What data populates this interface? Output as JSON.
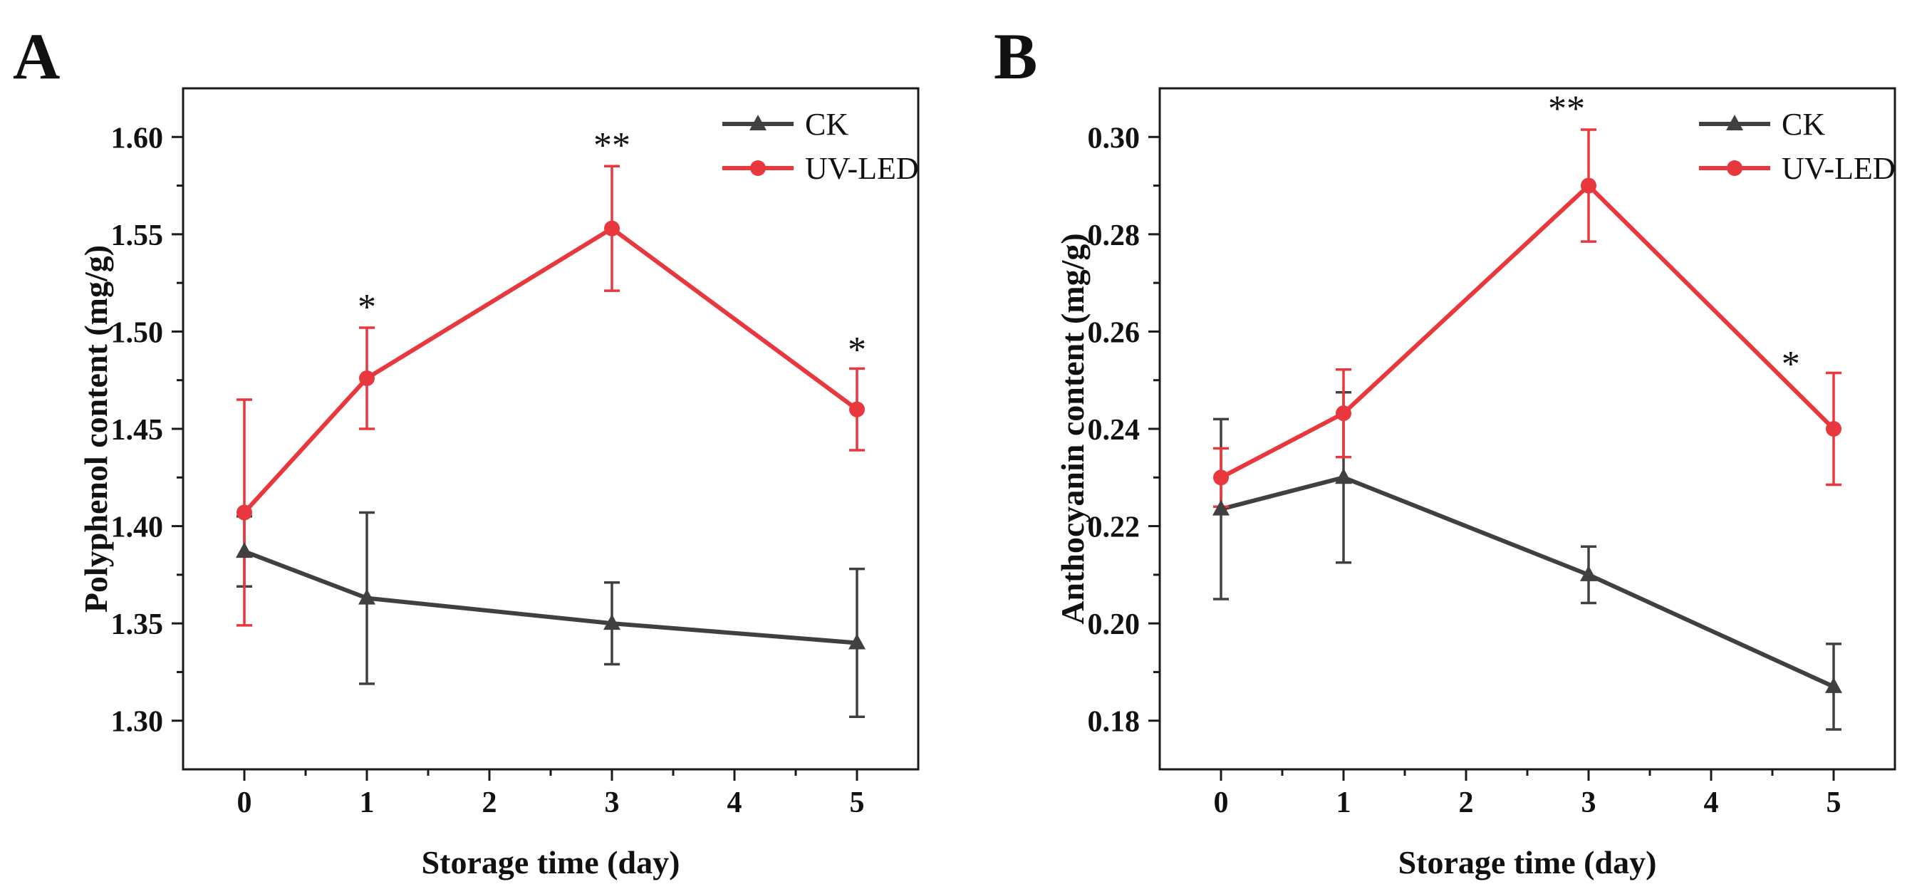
{
  "chart_data": [
    {
      "panel": "A",
      "type": "line",
      "xlabel": "Storage time (day)",
      "ylabel": "Polyphenol content (mg/g)",
      "xlim": [
        -0.5,
        5.5
      ],
      "ylim": [
        1.275,
        1.625
      ],
      "xticks": [
        0,
        1,
        2,
        3,
        4,
        5
      ],
      "yticks": [
        1.3,
        1.35,
        1.4,
        1.45,
        1.5,
        1.55,
        1.6
      ],
      "ytick_decimals": 2,
      "x": [
        0,
        1,
        3,
        5
      ],
      "legend_position": "top-right",
      "series": [
        {
          "name": "CK",
          "color": "#404040",
          "marker": "triangle",
          "values": [
            1.387,
            1.363,
            1.35,
            1.34
          ],
          "errors": [
            0.018,
            0.044,
            0.021,
            0.038
          ]
        },
        {
          "name": "UV-LED",
          "color": "#e8383d",
          "marker": "circle",
          "values": [
            1.407,
            1.476,
            1.553,
            1.46
          ],
          "errors": [
            0.058,
            0.026,
            0.032,
            0.021
          ]
        }
      ],
      "annotations": [
        {
          "text": "*",
          "x": 1,
          "y": 1.513
        },
        {
          "text": "**",
          "x": 3,
          "y": 1.596
        },
        {
          "text": "*",
          "x": 5,
          "y": 1.491
        }
      ]
    },
    {
      "panel": "B",
      "type": "line",
      "xlabel": "Storage time (day)",
      "ylabel": "Anthocyanin content (mg/g)",
      "xlim": [
        -0.5,
        5.5
      ],
      "ylim": [
        0.17,
        0.31
      ],
      "xticks": [
        0,
        1,
        2,
        3,
        4,
        5
      ],
      "yticks": [
        0.18,
        0.2,
        0.22,
        0.24,
        0.26,
        0.28,
        0.3
      ],
      "ytick_decimals": 2,
      "x": [
        0,
        1,
        3,
        5
      ],
      "legend_position": "top-right",
      "series": [
        {
          "name": "CK",
          "color": "#404040",
          "marker": "triangle",
          "values": [
            0.2235,
            0.23,
            0.21,
            0.187
          ],
          "errors": [
            0.0185,
            0.0175,
            0.0058,
            0.0088
          ]
        },
        {
          "name": "UV-LED",
          "color": "#e8383d",
          "marker": "circle",
          "values": [
            0.23,
            0.2432,
            0.29,
            0.24
          ],
          "errors": [
            0.006,
            0.009,
            0.0115,
            0.0115
          ]
        }
      ],
      "annotations": [
        {
          "text": "**",
          "x": 2.82,
          "y": 0.306
        },
        {
          "text": "*",
          "x": 4.65,
          "y": 0.2535
        }
      ]
    }
  ]
}
